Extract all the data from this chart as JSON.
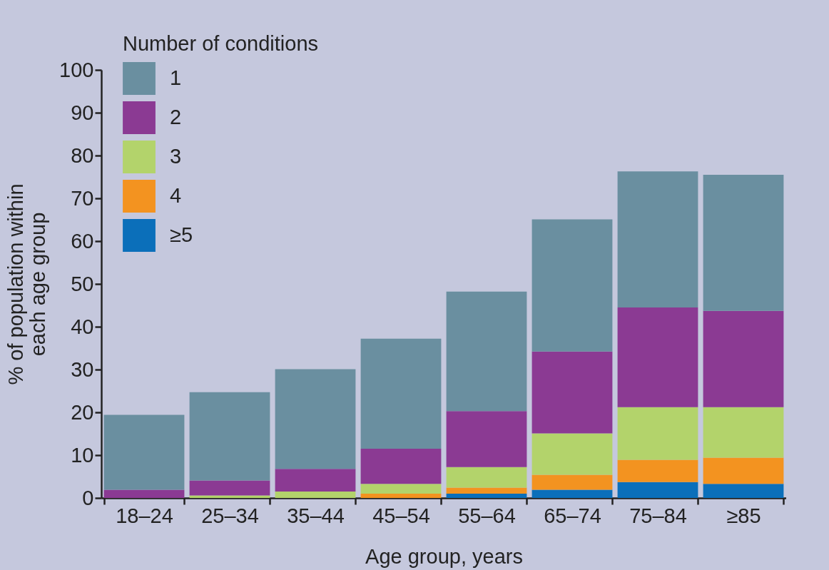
{
  "chart_data": {
    "type": "bar",
    "stacked": true,
    "xlabel": "Age group, years",
    "ylabel": "% of population within\neach age group",
    "legend_title": "Number of conditions",
    "categories": [
      "18–24",
      "25–34",
      "35–44",
      "45–54",
      "55–64",
      "65–74",
      "75–84",
      "≥85"
    ],
    "series": [
      {
        "name": "≥5",
        "color": "#0b6fba",
        "values": [
          0,
          0,
          0,
          0,
          1.0,
          1.9,
          3.7,
          3.3
        ]
      },
      {
        "name": "4",
        "color": "#f39320",
        "values": [
          0,
          0,
          0,
          1.0,
          1.4,
          3.5,
          5.2,
          6.1
        ]
      },
      {
        "name": "3",
        "color": "#b3d36b",
        "values": [
          0,
          0.6,
          1.5,
          2.3,
          4.8,
          9.7,
          12.3,
          11.8
        ]
      },
      {
        "name": "2",
        "color": "#8b3a93",
        "values": [
          1.9,
          3.5,
          5.3,
          8.2,
          13.1,
          19.1,
          23.3,
          22.5
        ]
      },
      {
        "name": "1",
        "color": "#6a8fa0",
        "values": [
          17.5,
          20.6,
          23.3,
          25.7,
          27.9,
          30.9,
          31.8,
          31.8
        ]
      }
    ],
    "ylim": [
      0,
      100
    ],
    "yticks": [
      0,
      10,
      20,
      30,
      40,
      50,
      60,
      70,
      80,
      90,
      100
    ],
    "grid": false,
    "legend": "top left"
  }
}
